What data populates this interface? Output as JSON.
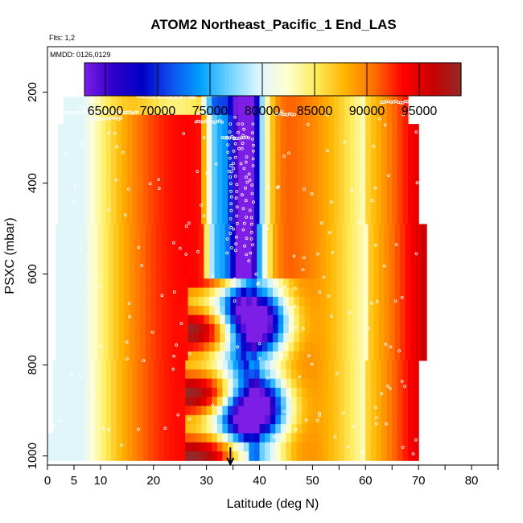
{
  "chart_data": {
    "type": "heatmap",
    "title": "ATOM2 Northeast_Pacific_1 End_LAS",
    "subtitle_flights": "Flts: 1,2",
    "subtitle_dates": "MMDD: 0126,0129",
    "xlabel": "Latitude (deg N)",
    "ylabel": "PSXC (mbar)",
    "xlim": [
      0,
      85
    ],
    "ylim": [
      1020,
      100
    ],
    "x_ticks": [
      0,
      5,
      10,
      20,
      30,
      40,
      50,
      60,
      70,
      80
    ],
    "x_tick_labels": [
      "0",
      "5",
      "10",
      "20",
      "30",
      "40",
      "50",
      "60",
      "70",
      "80"
    ],
    "x_minor_ticks": [
      15,
      25,
      35,
      45,
      55,
      65,
      75,
      85
    ],
    "y_ticks": [
      200,
      400,
      600,
      800,
      1000
    ],
    "y_tick_labels": [
      "200",
      "400",
      "600",
      "800",
      "1000"
    ],
    "colorbar": {
      "min": 63000,
      "max": 99000,
      "tick_values": [
        65000,
        70000,
        75000,
        80000,
        85000,
        90000,
        95000
      ],
      "tick_labels": [
        "65000",
        "70000",
        "75000",
        "80000",
        "85000",
        "90000",
        "95000"
      ],
      "colors": [
        "#7d1ee6",
        "#2d00c8",
        "#0000c8",
        "#0f50f0",
        "#00a0ff",
        "#6ed2ff",
        "#dcf5ff",
        "#ffffd2",
        "#ffeb5a",
        "#ffb400",
        "#ff6e00",
        "#ff0000",
        "#c80000",
        "#962828"
      ]
    },
    "marker_latitude": 34.5,
    "colors": {
      "frame": "#000000",
      "points": "#ffffff"
    }
  }
}
